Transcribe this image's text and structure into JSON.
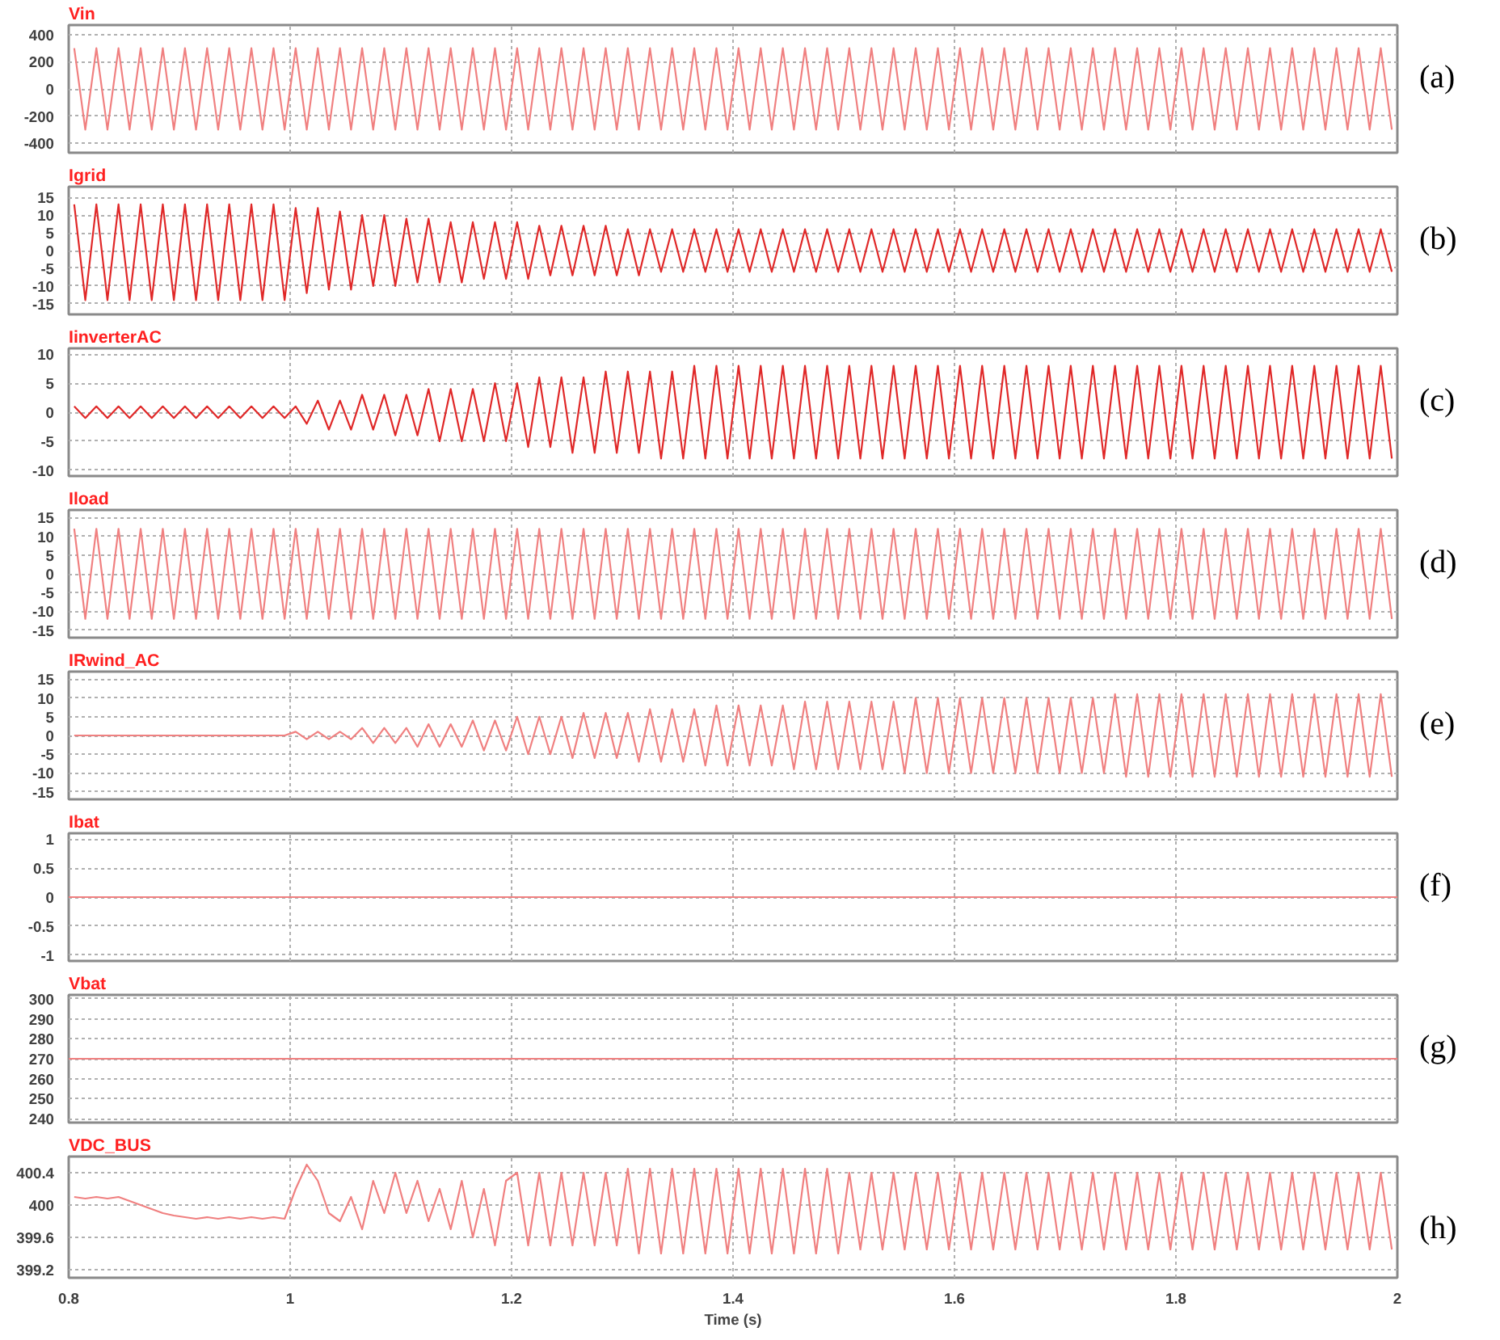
{
  "chart_data": [
    {
      "type": "line",
      "title": "Vin",
      "annotations": [
        "(a)"
      ],
      "color": "#f08080",
      "grid": true,
      "tick_labels": "y",
      "xlim": [
        0.8,
        2
      ],
      "ylim": [
        -470,
        470
      ],
      "xticks": [
        0.8,
        1,
        1.2,
        1.4,
        1.6,
        1.8,
        2
      ],
      "yticks": [
        -400,
        -200,
        0,
        200,
        400
      ],
      "x": [
        0.805,
        0.815,
        0.825,
        0.835,
        0.845,
        0.855,
        0.865,
        0.875,
        0.885,
        0.895,
        0.905,
        0.915,
        0.925,
        0.935,
        0.945,
        0.955,
        0.965,
        0.975,
        0.985,
        0.995,
        1.005,
        1.015,
        1.025,
        1.035,
        1.045,
        1.055,
        1.065,
        1.075,
        1.085,
        1.095,
        1.105,
        1.115,
        1.125,
        1.135,
        1.145,
        1.155,
        1.165,
        1.175,
        1.185,
        1.195,
        1.205,
        1.215,
        1.225,
        1.235,
        1.245,
        1.255,
        1.265,
        1.275,
        1.285,
        1.295,
        1.305,
        1.315,
        1.325,
        1.335,
        1.345,
        1.355,
        1.365,
        1.375,
        1.385,
        1.395,
        1.405,
        1.415,
        1.425,
        1.435,
        1.445,
        1.455,
        1.465,
        1.475,
        1.485,
        1.495,
        1.505,
        1.515,
        1.525,
        1.535,
        1.545,
        1.555,
        1.565,
        1.575,
        1.585,
        1.595,
        1.605,
        1.615,
        1.625,
        1.635,
        1.645,
        1.655,
        1.665,
        1.675,
        1.685,
        1.695,
        1.705,
        1.715,
        1.725,
        1.735,
        1.745,
        1.755,
        1.765,
        1.775,
        1.785,
        1.795,
        1.805,
        1.815,
        1.825,
        1.835,
        1.845,
        1.855,
        1.865,
        1.875,
        1.885,
        1.895,
        1.905,
        1.915,
        1.925,
        1.935,
        1.945,
        1.955,
        1.965,
        1.975,
        1.985,
        1.995
      ],
      "values": [
        300,
        -300,
        300,
        -300,
        300,
        -300,
        300,
        -300,
        300,
        -300,
        300,
        -300,
        300,
        -300,
        300,
        -300,
        300,
        -300,
        300,
        -300,
        300,
        -300,
        300,
        -300,
        300,
        -300,
        300,
        -300,
        300,
        -300,
        300,
        -300,
        300,
        -300,
        300,
        -300,
        300,
        -300,
        300,
        -300,
        300,
        -300,
        300,
        -300,
        300,
        -300,
        300,
        -300,
        300,
        -300,
        300,
        -300,
        300,
        -300,
        300,
        -300,
        300,
        -300,
        300,
        -300,
        300,
        -300,
        300,
        -300,
        300,
        -300,
        300,
        -300,
        300,
        -300,
        300,
        -300,
        300,
        -300,
        300,
        -300,
        300,
        -300,
        300,
        -300,
        300,
        -300,
        300,
        -300,
        300,
        -300,
        300,
        -300,
        300,
        -300,
        300,
        -300,
        300,
        -300,
        300,
        -300,
        300,
        -300,
        300,
        -300,
        300,
        -300,
        300,
        -300,
        300,
        -300,
        300,
        -300,
        300,
        -300,
        300,
        -300,
        300,
        -300,
        300,
        -300,
        300,
        -300,
        300,
        -300
      ]
    },
    {
      "type": "line",
      "title": "Igrid",
      "annotations": [
        "(b)"
      ],
      "color": "#e02828",
      "grid": true,
      "tick_labels": "y",
      "xlim": [
        0.8,
        2
      ],
      "ylim": [
        -18,
        18
      ],
      "xticks": [
        0.8,
        1,
        1.2,
        1.4,
        1.6,
        1.8,
        2
      ],
      "yticks": [
        -15,
        -10,
        -5,
        0,
        5,
        10,
        15
      ],
      "x": [
        0.805,
        0.815,
        0.825,
        0.835,
        0.845,
        0.855,
        0.865,
        0.875,
        0.885,
        0.895,
        0.905,
        0.915,
        0.925,
        0.935,
        0.945,
        0.955,
        0.965,
        0.975,
        0.985,
        0.995,
        1.005,
        1.015,
        1.025,
        1.035,
        1.045,
        1.055,
        1.065,
        1.075,
        1.085,
        1.095,
        1.105,
        1.115,
        1.125,
        1.135,
        1.145,
        1.155,
        1.165,
        1.175,
        1.185,
        1.195,
        1.205,
        1.215,
        1.225,
        1.235,
        1.245,
        1.255,
        1.265,
        1.275,
        1.285,
        1.295,
        1.305,
        1.315,
        1.325,
        1.335,
        1.345,
        1.355,
        1.365,
        1.375,
        1.385,
        1.395,
        1.405,
        1.415,
        1.425,
        1.435,
        1.445,
        1.455,
        1.465,
        1.475,
        1.485,
        1.495,
        1.505,
        1.515,
        1.525,
        1.535,
        1.545,
        1.555,
        1.565,
        1.575,
        1.585,
        1.595,
        1.605,
        1.615,
        1.625,
        1.635,
        1.645,
        1.655,
        1.665,
        1.675,
        1.685,
        1.695,
        1.705,
        1.715,
        1.725,
        1.735,
        1.745,
        1.755,
        1.765,
        1.775,
        1.785,
        1.795,
        1.805,
        1.815,
        1.825,
        1.835,
        1.845,
        1.855,
        1.865,
        1.875,
        1.885,
        1.895,
        1.905,
        1.915,
        1.925,
        1.935,
        1.945,
        1.955,
        1.965,
        1.975,
        1.985,
        1.995
      ],
      "values": [
        13,
        -14,
        13,
        -14,
        13,
        -14,
        13,
        -14,
        13,
        -14,
        13,
        -14,
        13,
        -14,
        13,
        -14,
        13,
        -14,
        13,
        -14,
        12,
        -12,
        12,
        -11,
        11,
        -11,
        10,
        -10,
        10,
        -10,
        9,
        -9,
        9,
        -9,
        8,
        -9,
        8,
        -8,
        8,
        -8,
        8,
        -8,
        7,
        -7,
        7,
        -7,
        7,
        -7,
        7,
        -7,
        6,
        -7,
        6,
        -6,
        6,
        -6,
        6,
        -6,
        6,
        -6,
        6,
        -6,
        6,
        -6,
        6,
        -6,
        6,
        -6,
        6,
        -6,
        6,
        -6,
        6,
        -6,
        6,
        -6,
        6,
        -6,
        6,
        -6,
        6,
        -6,
        6,
        -6,
        6,
        -6,
        6,
        -6,
        6,
        -6,
        6,
        -6,
        6,
        -6,
        6,
        -6,
        6,
        -6,
        6,
        -6,
        6,
        -6,
        6,
        -6,
        6,
        -6,
        6,
        -6,
        6,
        -6,
        6,
        -6,
        6,
        -6,
        6,
        -6,
        6,
        -6,
        6,
        -6
      ]
    },
    {
      "type": "line",
      "title": "IinverterAC",
      "annotations": [
        "(c)"
      ],
      "color": "#e02828",
      "grid": true,
      "tick_labels": "y",
      "xlim": [
        0.8,
        2
      ],
      "ylim": [
        -11,
        11
      ],
      "xticks": [
        0.8,
        1,
        1.2,
        1.4,
        1.6,
        1.8,
        2
      ],
      "yticks": [
        -10,
        -5,
        0,
        5,
        10
      ],
      "x": [
        0.805,
        0.815,
        0.825,
        0.835,
        0.845,
        0.855,
        0.865,
        0.875,
        0.885,
        0.895,
        0.905,
        0.915,
        0.925,
        0.935,
        0.945,
        0.955,
        0.965,
        0.975,
        0.985,
        0.995,
        1.005,
        1.015,
        1.025,
        1.035,
        1.045,
        1.055,
        1.065,
        1.075,
        1.085,
        1.095,
        1.105,
        1.115,
        1.125,
        1.135,
        1.145,
        1.155,
        1.165,
        1.175,
        1.185,
        1.195,
        1.205,
        1.215,
        1.225,
        1.235,
        1.245,
        1.255,
        1.265,
        1.275,
        1.285,
        1.295,
        1.305,
        1.315,
        1.325,
        1.335,
        1.345,
        1.355,
        1.365,
        1.375,
        1.385,
        1.395,
        1.405,
        1.415,
        1.425,
        1.435,
        1.445,
        1.455,
        1.465,
        1.475,
        1.485,
        1.495,
        1.505,
        1.515,
        1.525,
        1.535,
        1.545,
        1.555,
        1.565,
        1.575,
        1.585,
        1.595,
        1.605,
        1.615,
        1.625,
        1.635,
        1.645,
        1.655,
        1.665,
        1.675,
        1.685,
        1.695,
        1.705,
        1.715,
        1.725,
        1.735,
        1.745,
        1.755,
        1.765,
        1.775,
        1.785,
        1.795,
        1.805,
        1.815,
        1.825,
        1.835,
        1.845,
        1.855,
        1.865,
        1.875,
        1.885,
        1.895,
        1.905,
        1.915,
        1.925,
        1.935,
        1.945,
        1.955,
        1.965,
        1.975,
        1.985,
        1.995
      ],
      "values": [
        1,
        -1,
        1,
        -1,
        1,
        -1,
        1,
        -1,
        1,
        -1,
        1,
        -1,
        1,
        -1,
        1,
        -1,
        1,
        -1,
        1,
        -1,
        1,
        -2,
        2,
        -3,
        2,
        -3,
        3,
        -3,
        3,
        -4,
        3,
        -4,
        4,
        -5,
        4,
        -5,
        4,
        -5,
        5,
        -5,
        5,
        -6,
        6,
        -6,
        6,
        -7,
        6,
        -7,
        7,
        -7,
        7,
        -7,
        7,
        -8,
        7,
        -8,
        8,
        -8,
        8,
        -8,
        8,
        -8,
        8,
        -8,
        8,
        -8,
        8,
        -8,
        8,
        -8,
        8,
        -8,
        8,
        -8,
        8,
        -8,
        8,
        -8,
        8,
        -8,
        8,
        -8,
        8,
        -8,
        8,
        -8,
        8,
        -8,
        8,
        -8,
        8,
        -8,
        8,
        -8,
        8,
        -8,
        8,
        -8,
        8,
        -8,
        8,
        -8,
        8,
        -8,
        8,
        -8,
        8,
        -8,
        8,
        -8,
        8,
        -8,
        8,
        -8,
        8,
        -8,
        8,
        -8,
        8,
        -8
      ]
    },
    {
      "type": "line",
      "title": "Iload",
      "annotations": [
        "(d)"
      ],
      "color": "#f08080",
      "grid": true,
      "tick_labels": "y",
      "xlim": [
        0.8,
        2
      ],
      "ylim": [
        -17,
        17
      ],
      "xticks": [
        0.8,
        1,
        1.2,
        1.4,
        1.6,
        1.8,
        2
      ],
      "yticks": [
        -15,
        -10,
        -5,
        0,
        5,
        10,
        15
      ],
      "x": [
        0.805,
        0.815,
        0.825,
        0.835,
        0.845,
        0.855,
        0.865,
        0.875,
        0.885,
        0.895,
        0.905,
        0.915,
        0.925,
        0.935,
        0.945,
        0.955,
        0.965,
        0.975,
        0.985,
        0.995,
        1.005,
        1.015,
        1.025,
        1.035,
        1.045,
        1.055,
        1.065,
        1.075,
        1.085,
        1.095,
        1.105,
        1.115,
        1.125,
        1.135,
        1.145,
        1.155,
        1.165,
        1.175,
        1.185,
        1.195,
        1.205,
        1.215,
        1.225,
        1.235,
        1.245,
        1.255,
        1.265,
        1.275,
        1.285,
        1.295,
        1.305,
        1.315,
        1.325,
        1.335,
        1.345,
        1.355,
        1.365,
        1.375,
        1.385,
        1.395,
        1.405,
        1.415,
        1.425,
        1.435,
        1.445,
        1.455,
        1.465,
        1.475,
        1.485,
        1.495,
        1.505,
        1.515,
        1.525,
        1.535,
        1.545,
        1.555,
        1.565,
        1.575,
        1.585,
        1.595,
        1.605,
        1.615,
        1.625,
        1.635,
        1.645,
        1.655,
        1.665,
        1.675,
        1.685,
        1.695,
        1.705,
        1.715,
        1.725,
        1.735,
        1.745,
        1.755,
        1.765,
        1.775,
        1.785,
        1.795,
        1.805,
        1.815,
        1.825,
        1.835,
        1.845,
        1.855,
        1.865,
        1.875,
        1.885,
        1.895,
        1.905,
        1.915,
        1.925,
        1.935,
        1.945,
        1.955,
        1.965,
        1.975,
        1.985,
        1.995
      ],
      "values": [
        12,
        -12,
        12,
        -12,
        12,
        -12,
        12,
        -12,
        12,
        -12,
        12,
        -12,
        12,
        -12,
        12,
        -12,
        12,
        -12,
        12,
        -12,
        12,
        -12,
        12,
        -12,
        12,
        -12,
        12,
        -12,
        12,
        -12,
        12,
        -12,
        12,
        -12,
        12,
        -12,
        12,
        -12,
        12,
        -12,
        12,
        -12,
        12,
        -12,
        12,
        -12,
        12,
        -12,
        12,
        -12,
        12,
        -12,
        12,
        -12,
        12,
        -12,
        12,
        -12,
        12,
        -12,
        12,
        -12,
        12,
        -12,
        12,
        -12,
        12,
        -12,
        12,
        -12,
        12,
        -12,
        12,
        -12,
        12,
        -12,
        12,
        -12,
        12,
        -12,
        12,
        -12,
        12,
        -12,
        12,
        -12,
        12,
        -12,
        12,
        -12,
        12,
        -12,
        12,
        -12,
        12,
        -12,
        12,
        -12,
        12,
        -12,
        12,
        -12,
        12,
        -12,
        12,
        -12,
        12,
        -12,
        12,
        -12,
        12,
        -12,
        12,
        -12,
        12,
        -12,
        12,
        -12,
        12,
        -12
      ]
    },
    {
      "type": "line",
      "title": "IRwind_AC",
      "annotations": [
        "(e)"
      ],
      "color": "#f08080",
      "grid": true,
      "tick_labels": "y",
      "xlim": [
        0.8,
        2
      ],
      "ylim": [
        -17,
        17
      ],
      "xticks": [
        0.8,
        1,
        1.2,
        1.4,
        1.6,
        1.8,
        2
      ],
      "yticks": [
        -15,
        -10,
        -5,
        0,
        5,
        10,
        15
      ],
      "x": [
        0.805,
        0.815,
        0.825,
        0.835,
        0.845,
        0.855,
        0.865,
        0.875,
        0.885,
        0.895,
        0.905,
        0.915,
        0.925,
        0.935,
        0.945,
        0.955,
        0.965,
        0.975,
        0.985,
        0.995,
        1.005,
        1.015,
        1.025,
        1.035,
        1.045,
        1.055,
        1.065,
        1.075,
        1.085,
        1.095,
        1.105,
        1.115,
        1.125,
        1.135,
        1.145,
        1.155,
        1.165,
        1.175,
        1.185,
        1.195,
        1.205,
        1.215,
        1.225,
        1.235,
        1.245,
        1.255,
        1.265,
        1.275,
        1.285,
        1.295,
        1.305,
        1.315,
        1.325,
        1.335,
        1.345,
        1.355,
        1.365,
        1.375,
        1.385,
        1.395,
        1.405,
        1.415,
        1.425,
        1.435,
        1.445,
        1.455,
        1.465,
        1.475,
        1.485,
        1.495,
        1.505,
        1.515,
        1.525,
        1.535,
        1.545,
        1.555,
        1.565,
        1.575,
        1.585,
        1.595,
        1.605,
        1.615,
        1.625,
        1.635,
        1.645,
        1.655,
        1.665,
        1.675,
        1.685,
        1.695,
        1.705,
        1.715,
        1.725,
        1.735,
        1.745,
        1.755,
        1.765,
        1.775,
        1.785,
        1.795,
        1.805,
        1.815,
        1.825,
        1.835,
        1.845,
        1.855,
        1.865,
        1.875,
        1.885,
        1.895,
        1.905,
        1.915,
        1.925,
        1.935,
        1.945,
        1.955,
        1.965,
        1.975,
        1.985,
        1.995
      ],
      "values": [
        0,
        0,
        0,
        0,
        0,
        0,
        0,
        0,
        0,
        0,
        0,
        0,
        0,
        0,
        0,
        0,
        0,
        0,
        0,
        0,
        1,
        -1,
        1,
        -1,
        1,
        -1,
        2,
        -2,
        2,
        -2,
        2,
        -3,
        3,
        -3,
        3,
        -3,
        4,
        -4,
        4,
        -4,
        5,
        -5,
        5,
        -5,
        5,
        -6,
        6,
        -6,
        6,
        -6,
        6,
        -7,
        7,
        -7,
        7,
        -7,
        7,
        -8,
        8,
        -8,
        8,
        -8,
        8,
        -8,
        8,
        -9,
        9,
        -9,
        9,
        -9,
        9,
        -9,
        9,
        -9,
        9,
        -10,
        10,
        -10,
        10,
        -10,
        10,
        -10,
        10,
        -10,
        10,
        -10,
        10,
        -10,
        10,
        -10,
        10,
        -10,
        10,
        -10,
        11,
        -11,
        11,
        -11,
        11,
        -11,
        11,
        -11,
        11,
        -11,
        11,
        -11,
        11,
        -11,
        11,
        -11,
        11,
        -11,
        11,
        -11,
        11,
        -11,
        11,
        -11,
        11,
        -11
      ]
    },
    {
      "type": "line",
      "title": "Ibat",
      "annotations": [
        "(f)"
      ],
      "color": "#f08080",
      "grid": true,
      "tick_labels": "y",
      "xlim": [
        0.8,
        2
      ],
      "ylim": [
        -1.1,
        1.1
      ],
      "xticks": [
        0.8,
        1,
        1.2,
        1.4,
        1.6,
        1.8,
        2
      ],
      "yticks": [
        -1,
        -0.5,
        0,
        0.5,
        1
      ],
      "x": [
        0.8,
        2
      ],
      "values": [
        0,
        0
      ]
    },
    {
      "type": "line",
      "title": "Vbat",
      "annotations": [
        "(g)"
      ],
      "color": "#f08080",
      "grid": true,
      "tick_labels": "y",
      "xlim": [
        0.8,
        2
      ],
      "ylim": [
        238,
        302
      ],
      "xticks": [
        0.8,
        1,
        1.2,
        1.4,
        1.6,
        1.8,
        2
      ],
      "yticks": [
        240,
        250,
        260,
        270,
        280,
        290,
        300
      ],
      "x": [
        0.8,
        2
      ],
      "values": [
        270,
        270
      ]
    },
    {
      "type": "line",
      "title": "VDC_BUS",
      "xlabel": "Time (s)",
      "annotations": [
        "(h)"
      ],
      "color": "#f08080",
      "grid": true,
      "xlim": [
        0.8,
        2
      ],
      "ylim": [
        399.1,
        400.6
      ],
      "xticks": [
        0.8,
        1,
        1.2,
        1.4,
        1.6,
        1.8,
        2
      ],
      "yticks": [
        399.2,
        399.6,
        400,
        400.4
      ],
      "x": [
        0.805,
        0.815,
        0.825,
        0.835,
        0.845,
        0.855,
        0.865,
        0.875,
        0.885,
        0.895,
        0.905,
        0.915,
        0.925,
        0.935,
        0.945,
        0.955,
        0.965,
        0.975,
        0.985,
        0.995,
        1.005,
        1.015,
        1.025,
        1.035,
        1.045,
        1.055,
        1.065,
        1.075,
        1.085,
        1.095,
        1.105,
        1.115,
        1.125,
        1.135,
        1.145,
        1.155,
        1.165,
        1.175,
        1.185,
        1.195,
        1.205,
        1.215,
        1.225,
        1.235,
        1.245,
        1.255,
        1.265,
        1.275,
        1.285,
        1.295,
        1.305,
        1.315,
        1.325,
        1.335,
        1.345,
        1.355,
        1.365,
        1.375,
        1.385,
        1.395,
        1.405,
        1.415,
        1.425,
        1.435,
        1.445,
        1.455,
        1.465,
        1.475,
        1.485,
        1.495,
        1.505,
        1.515,
        1.525,
        1.535,
        1.545,
        1.555,
        1.565,
        1.575,
        1.585,
        1.595,
        1.605,
        1.615,
        1.625,
        1.635,
        1.645,
        1.655,
        1.665,
        1.675,
        1.685,
        1.695,
        1.705,
        1.715,
        1.725,
        1.735,
        1.745,
        1.755,
        1.765,
        1.775,
        1.785,
        1.795,
        1.805,
        1.815,
        1.825,
        1.835,
        1.845,
        1.855,
        1.865,
        1.875,
        1.885,
        1.895,
        1.905,
        1.915,
        1.925,
        1.935,
        1.945,
        1.955,
        1.965,
        1.975,
        1.985,
        1.995
      ],
      "values": [
        400.1,
        400.08,
        400.1,
        400.08,
        400.1,
        400.05,
        400,
        399.95,
        399.9,
        399.87,
        399.85,
        399.83,
        399.85,
        399.83,
        399.85,
        399.83,
        399.85,
        399.83,
        399.85,
        399.83,
        400.2,
        400.5,
        400.3,
        399.9,
        399.8,
        400.1,
        399.7,
        400.3,
        399.9,
        400.4,
        399.9,
        400.3,
        399.8,
        400.2,
        399.7,
        400.3,
        399.6,
        400.2,
        399.5,
        400.3,
        400.4,
        399.5,
        400.4,
        399.5,
        400.4,
        399.5,
        400.4,
        399.5,
        400.4,
        399.5,
        400.45,
        399.4,
        400.45,
        399.4,
        400.45,
        399.4,
        400.45,
        399.4,
        400.45,
        399.4,
        400.45,
        399.4,
        400.45,
        399.4,
        400.45,
        399.4,
        400.45,
        399.4,
        400.45,
        399.4,
        400.4,
        399.45,
        400.4,
        399.45,
        400.4,
        399.45,
        400.4,
        399.45,
        400.4,
        399.45,
        400.4,
        399.45,
        400.4,
        399.45,
        400.4,
        399.45,
        400.4,
        399.45,
        400.4,
        399.45,
        400.4,
        399.45,
        400.4,
        399.45,
        400.4,
        399.45,
        400.4,
        399.45,
        400.4,
        399.45,
        400.4,
        399.45,
        400.4,
        399.45,
        400.4,
        399.45,
        400.4,
        399.45,
        400.4,
        399.45,
        400.4,
        399.45,
        400.4,
        399.45,
        400.4,
        399.45,
        400.4,
        399.45,
        400.4,
        399.45
      ]
    }
  ]
}
